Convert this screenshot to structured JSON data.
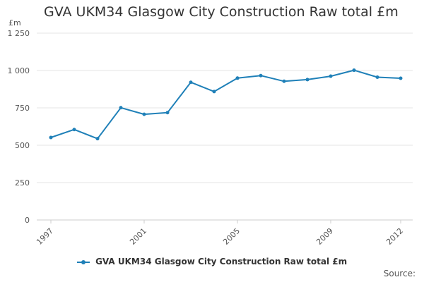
{
  "colors": {
    "series": "#1f80b8",
    "grid": "#e6e6e6",
    "axis_text": "#555555"
  },
  "source_label": "Source:",
  "chart_data": {
    "type": "line",
    "title": "GVA UKM34 Glasgow City Construction Raw total £m",
    "ylabel": "£m",
    "ylim": [
      0,
      1250
    ],
    "yticks": [
      0,
      250,
      500,
      750,
      1000,
      1250
    ],
    "ytick_labels": [
      "0",
      "250",
      "500",
      "750",
      "1 000",
      "1 250"
    ],
    "xlim": [
      1997,
      2012
    ],
    "xticks": [
      1997,
      2001,
      2005,
      2009,
      2012
    ],
    "xtick_labels": [
      "1997",
      "2001",
      "2005",
      "2009",
      "2012"
    ],
    "grid": true,
    "legend_position": "bottom",
    "series": [
      {
        "name": "GVA UKM34 Glasgow City Construction Raw total £m",
        "x": [
          1997,
          1998,
          1999,
          2000,
          2001,
          2002,
          2003,
          2004,
          2005,
          2006,
          2007,
          2008,
          2009,
          2010,
          2011,
          2012
        ],
        "values": [
          552,
          605,
          544,
          751,
          707,
          718,
          921,
          859,
          949,
          966,
          928,
          939,
          962,
          1002,
          955,
          948
        ]
      }
    ]
  }
}
